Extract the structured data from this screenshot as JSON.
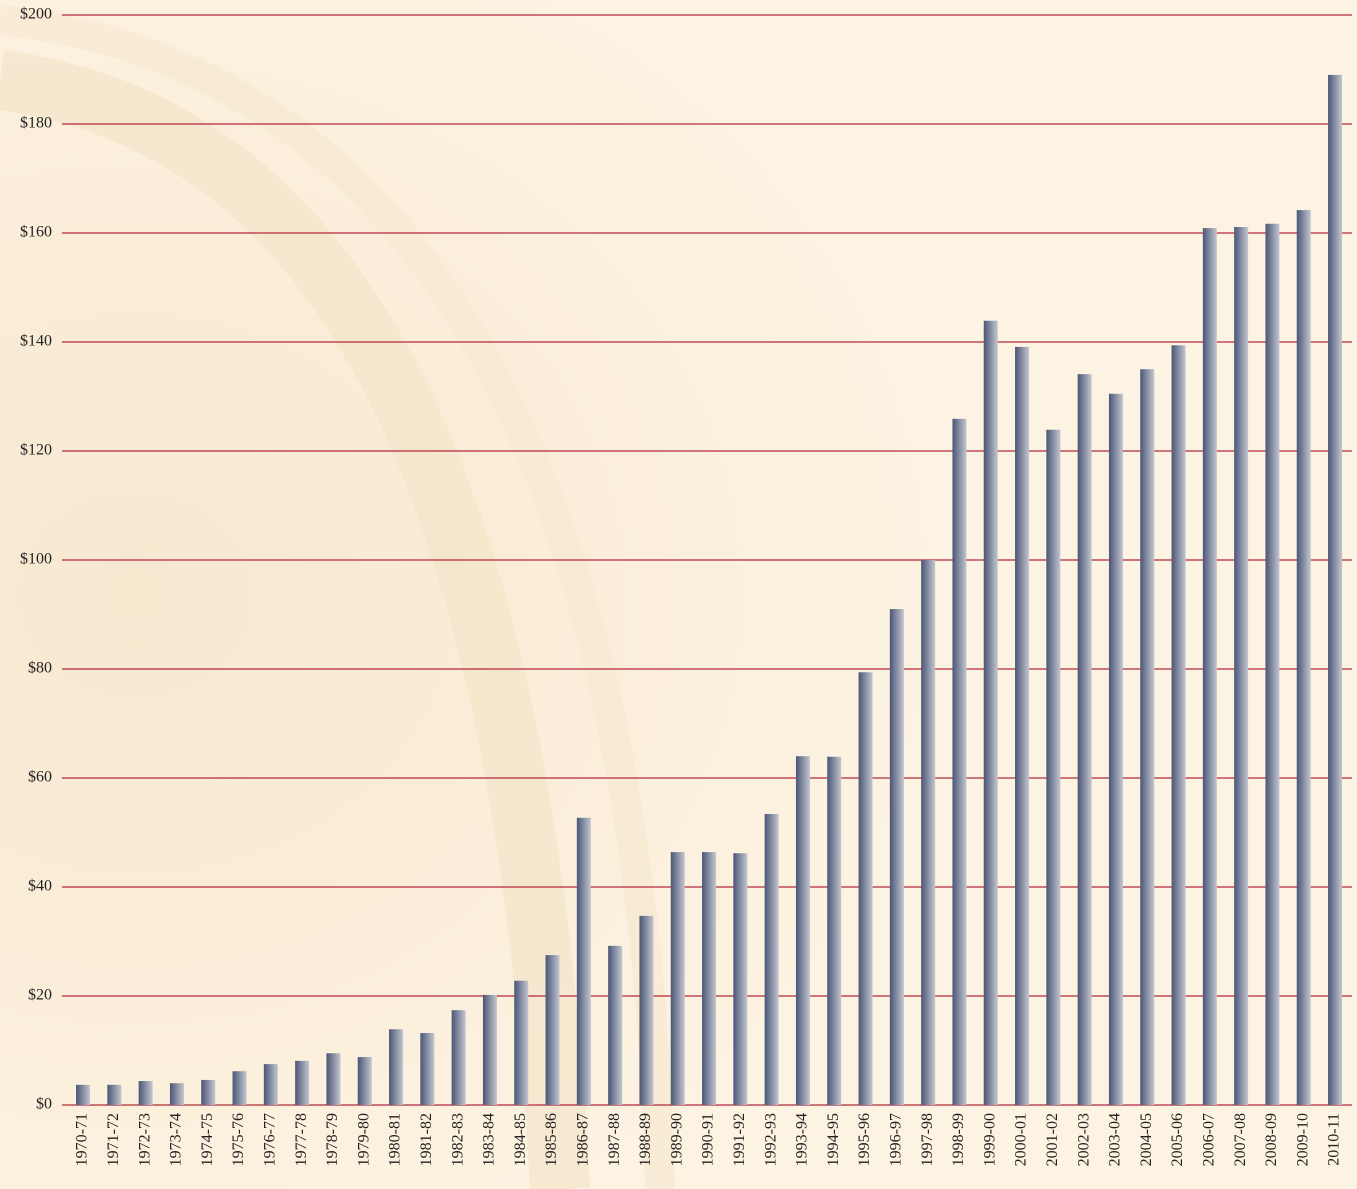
{
  "chart_data": {
    "type": "bar",
    "categories": [
      "1970-71",
      "1971-72",
      "1972-73",
      "1973-74",
      "1974-75",
      "1975-76",
      "1976-77",
      "1977-78",
      "1978-79",
      "1979-80",
      "1980-81",
      "1981-82",
      "1982-83",
      "1983-84",
      "1984-85",
      "1985-86",
      "1986-87",
      "1987-88",
      "1988-89",
      "1989-90",
      "1990-91",
      "1991-92",
      "1992-93",
      "1993-94",
      "1994-95",
      "1995-96",
      "1996-97",
      "1997-98",
      "1998-99",
      "1999-00",
      "2000-01",
      "2001-02",
      "2002-03",
      "2003-04",
      "2004-05",
      "2005-06",
      "2006-07",
      "2007-08",
      "2008-09",
      "2009-10",
      "2010-11"
    ],
    "values": [
      3.7,
      3.7,
      4.4,
      4.0,
      4.6,
      6.2,
      7.5,
      8.1,
      9.5,
      8.8,
      13.9,
      13.2,
      17.4,
      20.2,
      22.8,
      27.5,
      52.7,
      29.2,
      34.7,
      46.4,
      46.4,
      46.2,
      53.4,
      64.0,
      63.9,
      79.4,
      91.0,
      100.0,
      125.9,
      143.9,
      139.1,
      123.9,
      134.1,
      130.5,
      135.0,
      139.4,
      160.9,
      161.1,
      161.7,
      164.2,
      189.0
    ],
    "color": "#4a5676",
    "ylim": [
      0,
      200
    ],
    "yticks": [
      {
        "value": 0,
        "label": "$0"
      },
      {
        "value": 20,
        "label": "$20"
      },
      {
        "value": 40,
        "label": "$40"
      },
      {
        "value": 60,
        "label": "$60"
      },
      {
        "value": 80,
        "label": "$80"
      },
      {
        "value": 100,
        "label": "$100"
      },
      {
        "value": 120,
        "label": "$120"
      },
      {
        "value": 140,
        "label": "$140"
      },
      {
        "value": 160,
        "label": "$160"
      },
      {
        "value": 180,
        "label": "$180"
      },
      {
        "value": 200,
        "label": "$200"
      }
    ],
    "grid": true,
    "grid_color": "#b3283c"
  }
}
